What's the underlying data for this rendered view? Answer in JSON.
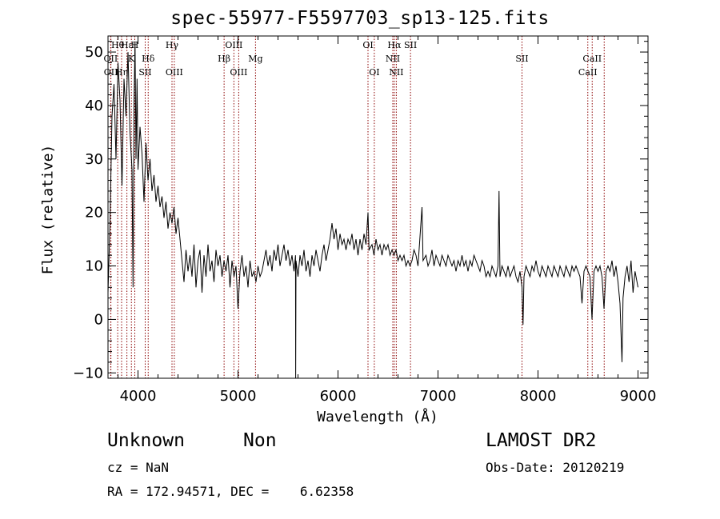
{
  "chart_data": {
    "type": "line",
    "title": "spec-55977-F5597703_sp13-125.fits",
    "xlabel": "Wavelength (Å)",
    "ylabel": "Flux (relative)",
    "xlim": [
      3700,
      9100
    ],
    "ylim": [
      -11,
      53
    ],
    "xticks": [
      4000,
      5000,
      6000,
      7000,
      8000,
      9000
    ],
    "yticks": [
      -10,
      0,
      10,
      20,
      30,
      40,
      50
    ],
    "grid": false,
    "series": [
      {
        "color": "#000000",
        "points": [
          [
            3700,
            5
          ],
          [
            3720,
            18
          ],
          [
            3740,
            38
          ],
          [
            3760,
            44
          ],
          [
            3780,
            30
          ],
          [
            3800,
            48
          ],
          [
            3820,
            41
          ],
          [
            3840,
            25
          ],
          [
            3860,
            45
          ],
          [
            3880,
            38
          ],
          [
            3900,
            50
          ],
          [
            3920,
            35
          ],
          [
            3940,
            28
          ],
          [
            3950,
            6
          ],
          [
            3960,
            40
          ],
          [
            3970,
            52
          ],
          [
            3980,
            30
          ],
          [
            3990,
            45
          ],
          [
            4000,
            28
          ],
          [
            4020,
            36
          ],
          [
            4040,
            31
          ],
          [
            4060,
            22
          ],
          [
            4080,
            33
          ],
          [
            4100,
            26
          ],
          [
            4120,
            30
          ],
          [
            4140,
            24
          ],
          [
            4160,
            27
          ],
          [
            4180,
            22
          ],
          [
            4200,
            25
          ],
          [
            4220,
            21
          ],
          [
            4240,
            23
          ],
          [
            4260,
            19
          ],
          [
            4280,
            22
          ],
          [
            4300,
            17
          ],
          [
            4320,
            20
          ],
          [
            4340,
            18
          ],
          [
            4360,
            21
          ],
          [
            4380,
            16
          ],
          [
            4400,
            19
          ],
          [
            4420,
            15
          ],
          [
            4440,
            11
          ],
          [
            4460,
            7
          ],
          [
            4480,
            13
          ],
          [
            4500,
            9
          ],
          [
            4520,
            12
          ],
          [
            4540,
            8
          ],
          [
            4560,
            14
          ],
          [
            4580,
            6
          ],
          [
            4600,
            11
          ],
          [
            4620,
            13
          ],
          [
            4640,
            5
          ],
          [
            4660,
            12
          ],
          [
            4680,
            8
          ],
          [
            4700,
            14
          ],
          [
            4720,
            9
          ],
          [
            4740,
            11
          ],
          [
            4760,
            7
          ],
          [
            4780,
            13
          ],
          [
            4800,
            10
          ],
          [
            4820,
            12
          ],
          [
            4840,
            8
          ],
          [
            4860,
            11
          ],
          [
            4880,
            9
          ],
          [
            4900,
            12
          ],
          [
            4920,
            6
          ],
          [
            4940,
            11
          ],
          [
            4960,
            8
          ],
          [
            4980,
            10
          ],
          [
            5000,
            2
          ],
          [
            5020,
            9
          ],
          [
            5040,
            12
          ],
          [
            5060,
            8
          ],
          [
            5080,
            10
          ],
          [
            5100,
            6
          ],
          [
            5120,
            11
          ],
          [
            5140,
            8
          ],
          [
            5160,
            9
          ],
          [
            5180,
            7
          ],
          [
            5200,
            10
          ],
          [
            5220,
            8
          ],
          [
            5240,
            9
          ],
          [
            5260,
            11
          ],
          [
            5280,
            13
          ],
          [
            5300,
            10
          ],
          [
            5320,
            12
          ],
          [
            5340,
            9
          ],
          [
            5360,
            13
          ],
          [
            5380,
            11
          ],
          [
            5400,
            14
          ],
          [
            5420,
            10
          ],
          [
            5440,
            12
          ],
          [
            5460,
            14
          ],
          [
            5480,
            11
          ],
          [
            5500,
            13
          ],
          [
            5520,
            10
          ],
          [
            5540,
            12
          ],
          [
            5560,
            9
          ],
          [
            5575,
            12
          ],
          [
            5577,
            -11
          ],
          [
            5580,
            11
          ],
          [
            5600,
            8
          ],
          [
            5620,
            12
          ],
          [
            5640,
            10
          ],
          [
            5660,
            13
          ],
          [
            5680,
            9
          ],
          [
            5700,
            11
          ],
          [
            5720,
            8
          ],
          [
            5740,
            12
          ],
          [
            5760,
            10
          ],
          [
            5780,
            13
          ],
          [
            5800,
            11
          ],
          [
            5820,
            9
          ],
          [
            5840,
            12
          ],
          [
            5860,
            14
          ],
          [
            5880,
            11
          ],
          [
            5900,
            13
          ],
          [
            5920,
            15
          ],
          [
            5940,
            18
          ],
          [
            5960,
            15
          ],
          [
            5980,
            17
          ],
          [
            6000,
            13
          ],
          [
            6020,
            16
          ],
          [
            6040,
            14
          ],
          [
            6060,
            15
          ],
          [
            6080,
            13
          ],
          [
            6100,
            15
          ],
          [
            6120,
            14
          ],
          [
            6140,
            16
          ],
          [
            6160,
            13
          ],
          [
            6180,
            15
          ],
          [
            6200,
            12
          ],
          [
            6220,
            15
          ],
          [
            6240,
            13
          ],
          [
            6260,
            16
          ],
          [
            6280,
            14
          ],
          [
            6300,
            20
          ],
          [
            6310,
            13
          ],
          [
            6340,
            14
          ],
          [
            6360,
            12
          ],
          [
            6380,
            15
          ],
          [
            6400,
            13
          ],
          [
            6420,
            14
          ],
          [
            6440,
            12
          ],
          [
            6460,
            14
          ],
          [
            6480,
            13
          ],
          [
            6500,
            14
          ],
          [
            6520,
            12
          ],
          [
            6540,
            13
          ],
          [
            6560,
            12
          ],
          [
            6580,
            13
          ],
          [
            6600,
            11
          ],
          [
            6620,
            12
          ],
          [
            6640,
            11
          ],
          [
            6660,
            12
          ],
          [
            6680,
            10
          ],
          [
            6700,
            11
          ],
          [
            6720,
            10
          ],
          [
            6740,
            11
          ],
          [
            6760,
            13
          ],
          [
            6780,
            12
          ],
          [
            6800,
            10
          ],
          [
            6840,
            21
          ],
          [
            6850,
            11
          ],
          [
            6880,
            12
          ],
          [
            6900,
            10
          ],
          [
            6920,
            11
          ],
          [
            6940,
            13
          ],
          [
            6960,
            10
          ],
          [
            6980,
            12
          ],
          [
            7000,
            11
          ],
          [
            7020,
            10
          ],
          [
            7040,
            12
          ],
          [
            7060,
            11
          ],
          [
            7080,
            10
          ],
          [
            7100,
            12
          ],
          [
            7120,
            11
          ],
          [
            7140,
            10
          ],
          [
            7160,
            11
          ],
          [
            7180,
            9
          ],
          [
            7200,
            11
          ],
          [
            7220,
            10
          ],
          [
            7240,
            12
          ],
          [
            7260,
            10
          ],
          [
            7280,
            11
          ],
          [
            7300,
            9
          ],
          [
            7320,
            11
          ],
          [
            7340,
            10
          ],
          [
            7360,
            12
          ],
          [
            7380,
            11
          ],
          [
            7400,
            10
          ],
          [
            7420,
            9
          ],
          [
            7440,
            11
          ],
          [
            7460,
            10
          ],
          [
            7480,
            8
          ],
          [
            7500,
            9
          ],
          [
            7520,
            8
          ],
          [
            7540,
            10
          ],
          [
            7560,
            9
          ],
          [
            7580,
            8
          ],
          [
            7600,
            10
          ],
          [
            7610,
            24
          ],
          [
            7620,
            8
          ],
          [
            7640,
            10
          ],
          [
            7660,
            9
          ],
          [
            7680,
            8
          ],
          [
            7700,
            10
          ],
          [
            7720,
            8
          ],
          [
            7740,
            9
          ],
          [
            7760,
            10
          ],
          [
            7780,
            8
          ],
          [
            7800,
            7
          ],
          [
            7820,
            9
          ],
          [
            7840,
            6
          ],
          [
            7850,
            -1
          ],
          [
            7860,
            8
          ],
          [
            7880,
            10
          ],
          [
            7900,
            9
          ],
          [
            7920,
            8
          ],
          [
            7940,
            10
          ],
          [
            7960,
            9
          ],
          [
            7980,
            11
          ],
          [
            8000,
            9
          ],
          [
            8020,
            8
          ],
          [
            8040,
            10
          ],
          [
            8060,
            9
          ],
          [
            8080,
            8
          ],
          [
            8100,
            10
          ],
          [
            8120,
            9
          ],
          [
            8140,
            8
          ],
          [
            8160,
            10
          ],
          [
            8180,
            9
          ],
          [
            8200,
            8
          ],
          [
            8220,
            10
          ],
          [
            8240,
            9
          ],
          [
            8260,
            8
          ],
          [
            8280,
            10
          ],
          [
            8300,
            9
          ],
          [
            8320,
            8
          ],
          [
            8340,
            10
          ],
          [
            8360,
            9
          ],
          [
            8380,
            10
          ],
          [
            8400,
            9
          ],
          [
            8420,
            8
          ],
          [
            8440,
            3
          ],
          [
            8460,
            9
          ],
          [
            8480,
            10
          ],
          [
            8500,
            9
          ],
          [
            8520,
            8
          ],
          [
            8540,
            0
          ],
          [
            8560,
            9
          ],
          [
            8580,
            10
          ],
          [
            8600,
            9
          ],
          [
            8620,
            10
          ],
          [
            8640,
            8
          ],
          [
            8660,
            2
          ],
          [
            8680,
            9
          ],
          [
            8700,
            10
          ],
          [
            8720,
            9
          ],
          [
            8740,
            11
          ],
          [
            8760,
            8
          ],
          [
            8780,
            10
          ],
          [
            8800,
            7
          ],
          [
            8820,
            3
          ],
          [
            8840,
            -8
          ],
          [
            8850,
            4
          ],
          [
            8870,
            8
          ],
          [
            8890,
            10
          ],
          [
            8910,
            7
          ],
          [
            8930,
            11
          ],
          [
            8950,
            5
          ],
          [
            8970,
            9
          ],
          [
            9000,
            6
          ]
        ]
      }
    ],
    "emission_lines": [
      {
        "label": "Hθ",
        "wavelength": 3797,
        "row": 0
      },
      {
        "label": "OII",
        "wavelength": 3727,
        "row": 1
      },
      {
        "label": "OII",
        "wavelength": 3729,
        "row": 2
      },
      {
        "label": "Hε",
        "wavelength": 3889,
        "row": 0
      },
      {
        "label": "K",
        "wavelength": 3934,
        "row": 1
      },
      {
        "label": "H",
        "wavelength": 3968,
        "row": 0
      },
      {
        "label": "Hη",
        "wavelength": 3836,
        "row": 2
      },
      {
        "label": "Hδ",
        "wavelength": 4102,
        "row": 1
      },
      {
        "label": "SII",
        "wavelength": 4072,
        "row": 2
      },
      {
        "label": "Hγ",
        "wavelength": 4340,
        "row": 0
      },
      {
        "label": "OIII",
        "wavelength": 4363,
        "row": 2
      },
      {
        "label": "Hβ",
        "wavelength": 4861,
        "row": 1
      },
      {
        "label": "OIII",
        "wavelength": 4959,
        "row": 0
      },
      {
        "label": "OIII",
        "wavelength": 5007,
        "row": 2
      },
      {
        "label": "Mg",
        "wavelength": 5175,
        "row": 1
      },
      {
        "label": "OI",
        "wavelength": 6300,
        "row": 0
      },
      {
        "label": "OI",
        "wavelength": 6363,
        "row": 2
      },
      {
        "label": "Hα",
        "wavelength": 6563,
        "row": 0
      },
      {
        "label": "NII",
        "wavelength": 6548,
        "row": 1
      },
      {
        "label": "NII",
        "wavelength": 6583,
        "row": 2
      },
      {
        "label": "SII",
        "wavelength": 6725,
        "row": 0
      },
      {
        "label": "SII",
        "wavelength": 7840,
        "row": 1
      },
      {
        "label": "CaII",
        "wavelength": 8542,
        "row": 1
      },
      {
        "label": "CaII",
        "wavelength": 8498,
        "row": 2
      },
      {
        "label": "",
        "wavelength": 8662,
        "row": 3
      }
    ]
  },
  "info": {
    "obj_class": "Unknown",
    "obj_subclass": "Non",
    "survey": "LAMOST DR2",
    "cz": "cz = NaN",
    "obs_date": "Obs-Date: 20120219",
    "radec": "RA = 172.94571, DEC =    6.62358"
  },
  "colors": {
    "spectrum": "#000000",
    "emission_line": "#8b0000"
  }
}
